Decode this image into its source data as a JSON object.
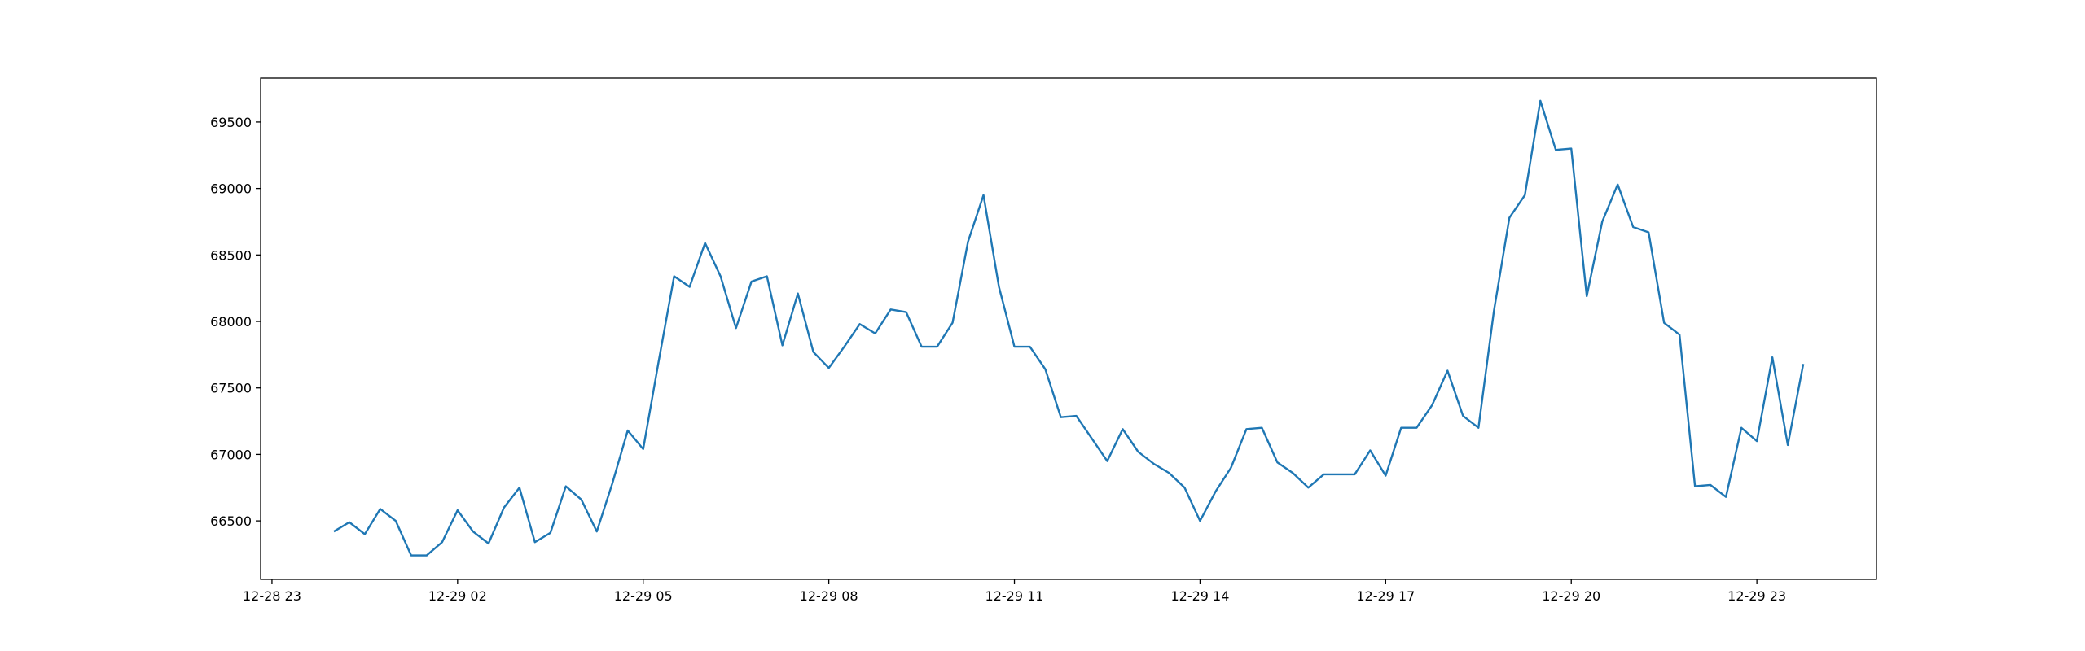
{
  "chart_data": {
    "type": "line",
    "x": [
      "12-29 00:00",
      "12-29 00:15",
      "12-29 00:30",
      "12-29 00:45",
      "12-29 01:00",
      "12-29 01:15",
      "12-29 01:30",
      "12-29 01:45",
      "12-29 02:00",
      "12-29 02:15",
      "12-29 02:30",
      "12-29 02:45",
      "12-29 03:00",
      "12-29 03:15",
      "12-29 03:30",
      "12-29 03:45",
      "12-29 04:00",
      "12-29 04:15",
      "12-29 04:30",
      "12-29 04:45",
      "12-29 05:00",
      "12-29 05:15",
      "12-29 05:30",
      "12-29 05:45",
      "12-29 06:00",
      "12-29 06:15",
      "12-29 06:30",
      "12-29 06:45",
      "12-29 07:00",
      "12-29 07:15",
      "12-29 07:30",
      "12-29 07:45",
      "12-29 08:00",
      "12-29 08:15",
      "12-29 08:30",
      "12-29 08:45",
      "12-29 09:00",
      "12-29 09:15",
      "12-29 09:30",
      "12-29 09:45",
      "12-29 10:00",
      "12-29 10:15",
      "12-29 10:30",
      "12-29 10:45",
      "12-29 11:00",
      "12-29 11:15",
      "12-29 11:30",
      "12-29 11:45",
      "12-29 12:00",
      "12-29 12:15",
      "12-29 12:30",
      "12-29 12:45",
      "12-29 13:00",
      "12-29 13:15",
      "12-29 13:30",
      "12-29 13:45",
      "12-29 14:00",
      "12-29 14:15",
      "12-29 14:30",
      "12-29 14:45",
      "12-29 15:00",
      "12-29 15:15",
      "12-29 15:30",
      "12-29 15:45",
      "12-29 16:00",
      "12-29 16:15",
      "12-29 16:30",
      "12-29 16:45",
      "12-29 17:00",
      "12-29 17:15",
      "12-29 17:30",
      "12-29 17:45",
      "12-29 18:00",
      "12-29 18:15",
      "12-29 18:30",
      "12-29 18:45",
      "12-29 19:00",
      "12-29 19:15",
      "12-29 19:30",
      "12-29 19:45",
      "12-29 20:00",
      "12-29 20:15",
      "12-29 20:30",
      "12-29 20:45",
      "12-29 21:00",
      "12-29 21:15",
      "12-29 21:30",
      "12-29 21:45",
      "12-29 22:00",
      "12-29 22:15",
      "12-29 22:30",
      "12-29 22:45",
      "12-29 23:00",
      "12-29 23:15",
      "12-29 23:30",
      "12-29 23:45"
    ],
    "values": [
      66420,
      66490,
      66400,
      66590,
      66500,
      66240,
      66240,
      66340,
      66580,
      66420,
      66330,
      66600,
      66750,
      66340,
      66410,
      66760,
      66660,
      66420,
      66780,
      67180,
      67040,
      67700,
      68340,
      68260,
      68590,
      68340,
      67950,
      68300,
      68340,
      67820,
      68210,
      67770,
      67650,
      67810,
      67980,
      67910,
      68090,
      68070,
      67810,
      67810,
      67990,
      68600,
      68950,
      68260,
      67810,
      67810,
      67640,
      67280,
      67290,
      67120,
      66950,
      67190,
      67020,
      66930,
      66860,
      66750,
      66500,
      66720,
      66900,
      67190,
      67200,
      66940,
      66860,
      66750,
      66850,
      66850,
      66850,
      67030,
      66840,
      67200,
      67200,
      67370,
      67630,
      67290,
      67200,
      68080,
      68780,
      68950,
      69660,
      69290,
      69300,
      68190,
      68750,
      69030,
      68710,
      68670,
      67990,
      67900,
      66760,
      66770,
      66680,
      67200,
      67100,
      67730,
      67070,
      67680
    ],
    "color": "#1f77b4",
    "xlim": [
      "12-28 22:49",
      "12-30 00:56"
    ],
    "xticks": [
      {
        "value": "12-28 23:00",
        "label": "12-28 23"
      },
      {
        "value": "12-29 02:00",
        "label": "12-29 02"
      },
      {
        "value": "12-29 05:00",
        "label": "12-29 05"
      },
      {
        "value": "12-29 08:00",
        "label": "12-29 08"
      },
      {
        "value": "12-29 11:00",
        "label": "12-29 11"
      },
      {
        "value": "12-29 14:00",
        "label": "12-29 14"
      },
      {
        "value": "12-29 17:00",
        "label": "12-29 17"
      },
      {
        "value": "12-29 20:00",
        "label": "12-29 20"
      },
      {
        "value": "12-29 23:00",
        "label": "12-29 23"
      }
    ],
    "ylim": [
      66060,
      69830
    ],
    "yticks": [
      66500,
      67000,
      67500,
      68000,
      68500,
      69000,
      69500
    ]
  }
}
